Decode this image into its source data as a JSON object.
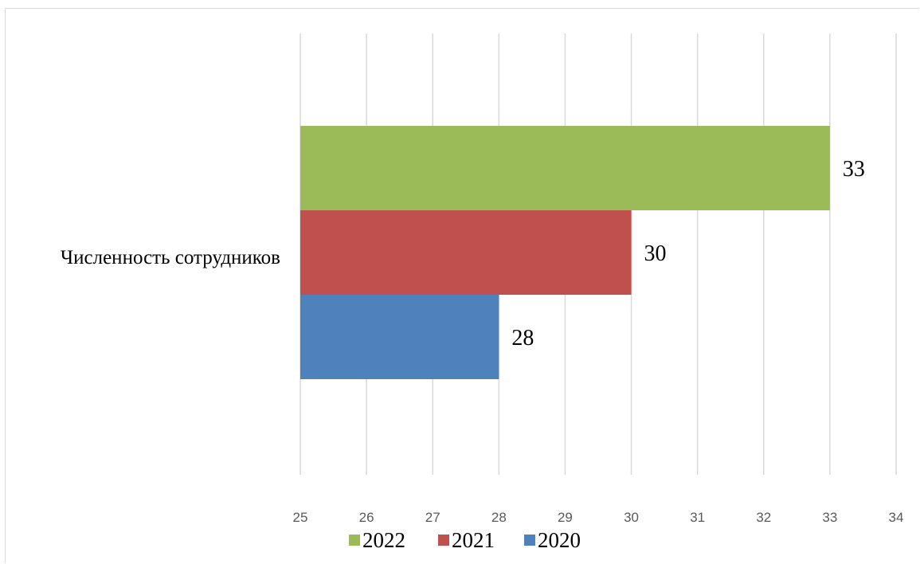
{
  "chart_data": {
    "type": "bar",
    "orientation": "horizontal",
    "categories": [
      "Численность сотрудников"
    ],
    "series": [
      {
        "name": "2022",
        "values": [
          33
        ],
        "color": "#9bbb59"
      },
      {
        "name": "2021",
        "values": [
          30
        ],
        "color": "#c0504d"
      },
      {
        "name": "2020",
        "values": [
          28
        ],
        "color": "#4f81bd"
      }
    ],
    "xlim": [
      25,
      34
    ],
    "xticks": [
      25,
      26,
      27,
      28,
      29,
      30,
      31,
      32,
      33,
      34
    ],
    "title": "",
    "xlabel": "",
    "ylabel": "",
    "grid": "vertical",
    "legend": "bottom",
    "gridline_color": "#d9d9d9",
    "tick_label_color": "#595959"
  }
}
